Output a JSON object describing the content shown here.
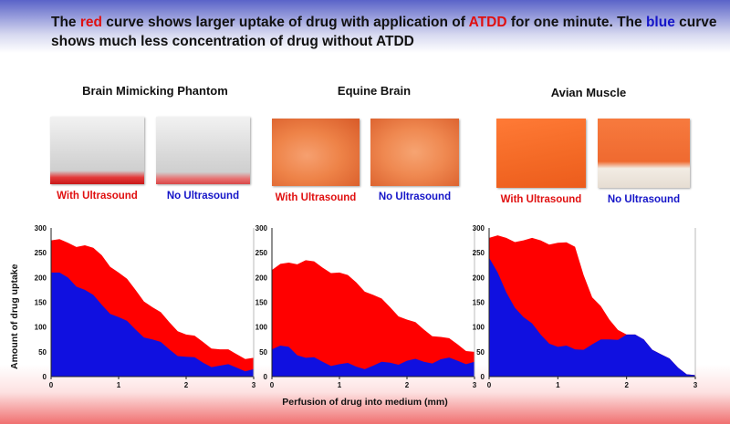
{
  "headline": {
    "part1": "The ",
    "red_word": "red",
    "part2": " curve shows larger uptake of drug with application of ",
    "atdd": "ATDD",
    "part3": " for one minute. The ",
    "blue_word": "blue",
    "part4": " curve shows much less concentration of drug without ATDD"
  },
  "panels": [
    {
      "title": "Brain Mimicking Phantom",
      "with_label": "With Ultrasound",
      "no_label": "No Ultrasound"
    },
    {
      "title": "Equine Brain",
      "with_label": "With Ultrasound",
      "no_label": "No Ultrasound"
    },
    {
      "title": "Avian Muscle",
      "with_label": "With Ultrasound",
      "no_label": "No Ultrasound"
    }
  ],
  "axis": {
    "ylabel": "Amount of drug uptake",
    "xlabel": "Perfusion of drug into medium (mm)"
  },
  "colors": {
    "with_ultrasound": "#ff0000",
    "no_ultrasound": "#1010e0",
    "photo_phantom": "#dedede",
    "photo_tissue": "#f07a3c"
  },
  "chart_data": [
    {
      "type": "area",
      "title": "Brain Mimicking Phantom",
      "xlim": [
        0,
        3
      ],
      "ylim": [
        0,
        300
      ],
      "xticks": [
        "0",
        "1",
        "2",
        "3"
      ],
      "yticks": [
        "0",
        "50",
        "100",
        "150",
        "200",
        "250",
        "300"
      ],
      "x": [
        0,
        0.25,
        0.5,
        0.75,
        1.0,
        1.25,
        1.5,
        1.75,
        2.0,
        2.25,
        2.5,
        2.75,
        3.0
      ],
      "series": [
        {
          "name": "With Ultrasound",
          "values": [
            275,
            270,
            265,
            245,
            210,
            175,
            140,
            110,
            85,
            70,
            55,
            45,
            38
          ]
        },
        {
          "name": "No Ultrasound",
          "values": [
            210,
            200,
            175,
            145,
            120,
            95,
            75,
            55,
            40,
            28,
            22,
            18,
            15
          ]
        }
      ]
    },
    {
      "type": "area",
      "title": "Equine Brain",
      "xlim": [
        0,
        3
      ],
      "ylim": [
        0,
        300
      ],
      "xticks": [
        "0",
        "1",
        "2",
        "3"
      ],
      "yticks": [
        "0",
        "50",
        "100",
        "150",
        "200",
        "250",
        "300"
      ],
      "x": [
        0,
        0.25,
        0.5,
        0.75,
        1.0,
        1.25,
        1.5,
        1.75,
        2.0,
        2.25,
        2.5,
        2.75,
        3.0
      ],
      "series": [
        {
          "name": "With Ultrasound",
          "values": [
            215,
            230,
            235,
            220,
            210,
            190,
            165,
            140,
            115,
            95,
            80,
            65,
            50
          ]
        },
        {
          "name": "No Ultrasound",
          "values": [
            55,
            60,
            38,
            30,
            25,
            20,
            22,
            28,
            32,
            30,
            35,
            32,
            30
          ]
        }
      ]
    },
    {
      "type": "area",
      "title": "Avian Muscle",
      "xlim": [
        0,
        3
      ],
      "ylim": [
        0,
        300
      ],
      "xticks": [
        "0",
        "1",
        "2",
        "3"
      ],
      "yticks": [
        "0",
        "50",
        "100",
        "150",
        "200",
        "250",
        "300"
      ],
      "x": [
        0,
        0.25,
        0.5,
        0.75,
        1.0,
        1.25,
        1.5,
        1.75,
        2.0,
        2.25,
        2.5,
        2.75,
        3.0
      ],
      "series": [
        {
          "name": "With Ultrasound",
          "values": [
            280,
            280,
            275,
            275,
            270,
            262,
            160,
            115,
            85,
            75,
            45,
            18,
            3
          ]
        },
        {
          "name": "No Ultrasound",
          "values": [
            240,
            170,
            120,
            85,
            60,
            55,
            65,
            75,
            85,
            75,
            45,
            18,
            3
          ]
        }
      ]
    }
  ]
}
